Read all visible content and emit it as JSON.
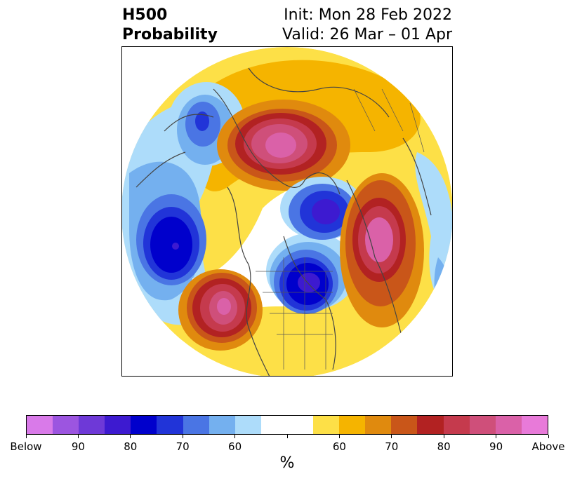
{
  "title": {
    "left_line1": "H500",
    "left_line2": "Probability",
    "right_line1": "Init: Mon 28 Feb 2022",
    "right_line2": "Valid: 26 Mar – 01 Apr"
  },
  "colorbar": {
    "unit": "%",
    "colors": [
      "#d97ae9",
      "#9c55e0",
      "#6e39d7",
      "#3d1ad0",
      "#0000cc",
      "#2134d8",
      "#4a75e4",
      "#74b0ef",
      "#addcfa",
      "#ffffff",
      "#ffffff",
      "#fde047",
      "#f5b400",
      "#e08a0e",
      "#c95619",
      "#b22222",
      "#c53a4d",
      "#cf4f7a",
      "#da61a8",
      "#e87ad9"
    ],
    "tick_labels": [
      "Below",
      "90",
      "80",
      "70",
      "60",
      "",
      "60",
      "70",
      "80",
      "90",
      "Above"
    ]
  },
  "map": {
    "projection": "north-polar-stereographic",
    "palette": {
      "blue1": "#addcfa",
      "blue2": "#74b0ef",
      "blue3": "#4a75e4",
      "blue4": "#2134d8",
      "blue5": "#0000cc",
      "blue6": "#3d1ad0",
      "blue7": "#6e39d7",
      "red1": "#fde047",
      "red2": "#f5b400",
      "red3": "#e08a0e",
      "red4": "#c95619",
      "red5": "#b22222",
      "red6": "#c53a4d",
      "red7": "#cf4f7a",
      "red8": "#da61a8"
    }
  }
}
